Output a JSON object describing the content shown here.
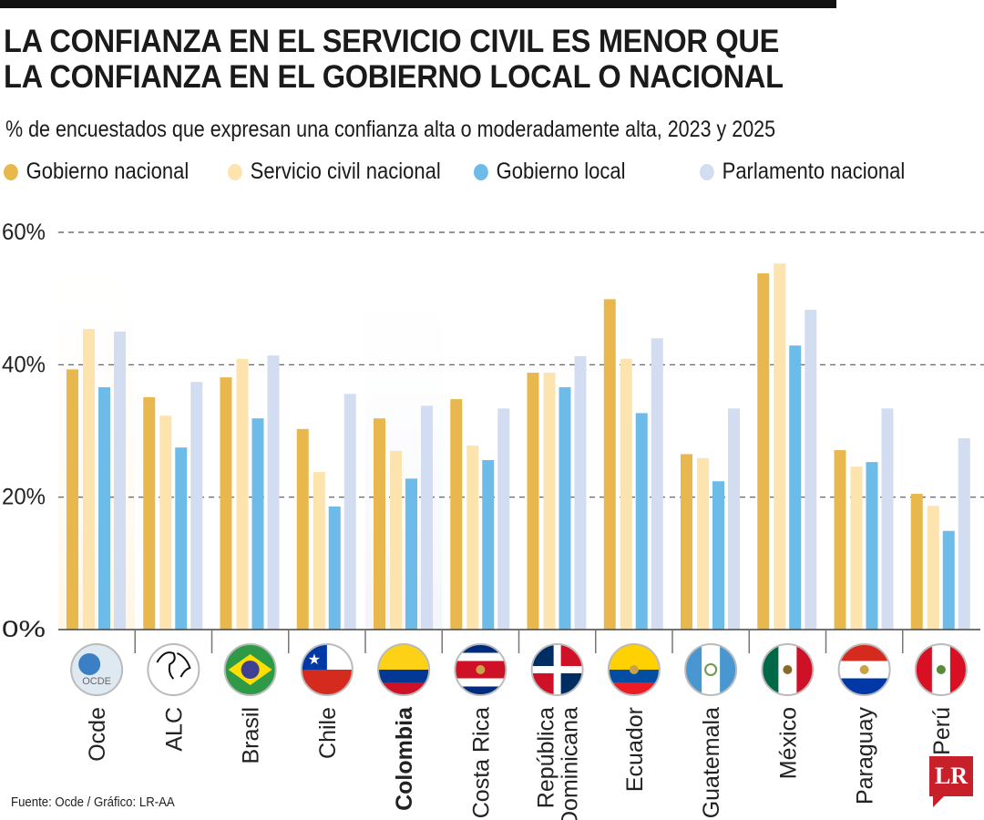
{
  "title_line1": "LA CONFIANZA EN EL SERVICIO CIVIL ES MENOR QUE",
  "title_line2": "LA CONFIANZA EN EL GOBIERNO LOCAL O NACIONAL",
  "subtitle": "% de encuestados que expresan una confianza alta o moderadamente alta, 2023 y 2025",
  "source": "Fuente: Ocde / Gráfico: LR-AA",
  "logo": "LR",
  "chart_data": {
    "type": "bar",
    "title": "La confianza en el servicio civil es menor que la confianza en el gobierno local o nacional",
    "ylabel": "%",
    "ylim": [
      0,
      60
    ],
    "yticks": [
      "0%",
      "20%",
      "40%",
      "60%"
    ],
    "ytick_values": [
      0,
      20,
      40,
      60
    ],
    "grid": true,
    "legend_position": "top",
    "categories": [
      "Ocde",
      "ALC",
      "Brasil",
      "Chile",
      "Colombia",
      "Costa Rica",
      "República Dominicana",
      "Ecuador",
      "Guatemala",
      "México",
      "Paraguay",
      "Perú"
    ],
    "highlight": [
      "Ocde",
      "Colombia"
    ],
    "series": [
      {
        "name": "Gobierno nacional",
        "color": "#e8b84f",
        "values": [
          39.3,
          35.1,
          38.1,
          30.3,
          31.9,
          34.8,
          38.8,
          49.9,
          26.5,
          53.8,
          27.1,
          20.5
        ]
      },
      {
        "name": "Servicio civil nacional",
        "color": "#fde3ae",
        "values": [
          45.4,
          32.3,
          40.9,
          23.8,
          27.0,
          27.8,
          38.8,
          40.9,
          25.9,
          55.3,
          24.6,
          18.7
        ]
      },
      {
        "name": "Gobierno local",
        "color": "#6cbbe9",
        "values": [
          36.6,
          27.5,
          31.9,
          18.6,
          22.8,
          25.6,
          36.6,
          32.7,
          22.4,
          42.9,
          25.3,
          14.9
        ]
      },
      {
        "name": "Parlamento nacional",
        "color": "#d3ddf1",
        "values": [
          45.0,
          37.4,
          41.4,
          35.6,
          33.8,
          33.4,
          41.3,
          44.0,
          33.4,
          48.3,
          33.4,
          28.9
        ]
      }
    ]
  }
}
